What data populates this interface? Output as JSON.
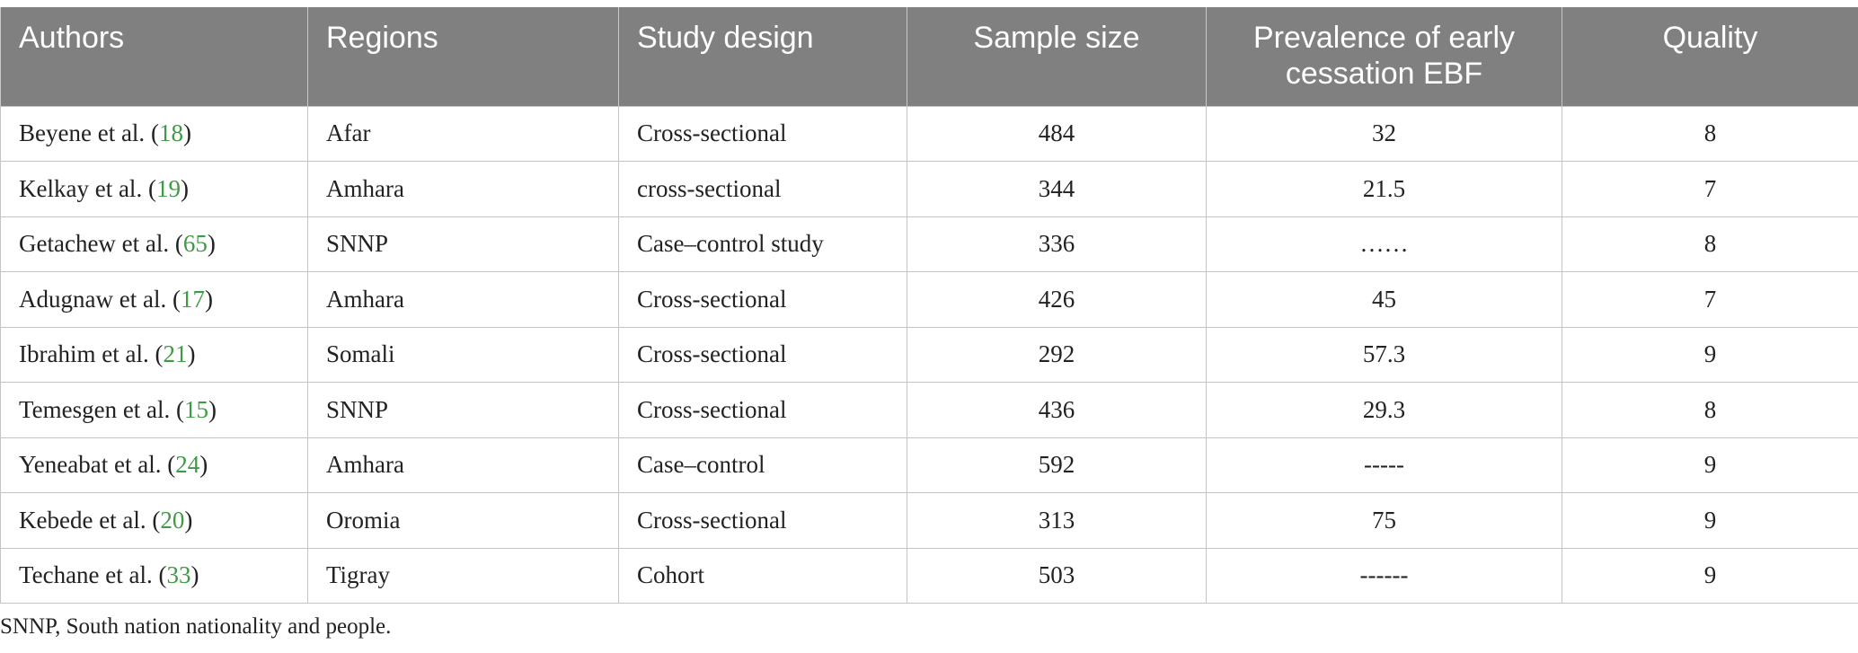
{
  "table": {
    "headers": [
      "Authors",
      "Regions",
      "Study design",
      "Sample size",
      "Prevalence of early cessation EBF",
      "Quality"
    ],
    "rows": [
      {
        "author": "Beyene et al.",
        "ref": "18",
        "region": "Afar",
        "design": "Cross-sectional",
        "sample": "484",
        "prevalence": "32",
        "quality": "8"
      },
      {
        "author": "Kelkay et al.",
        "ref": "19",
        "region": "Amhara",
        "design": "cross-sectional",
        "sample": "344",
        "prevalence": "21.5",
        "quality": "7"
      },
      {
        "author": "Getachew et al.",
        "ref": "65",
        "region": "SNNP",
        "design": "Case–control study",
        "sample": "336",
        "prevalence": "……",
        "quality": "8"
      },
      {
        "author": "Adugnaw et al.",
        "ref": "17",
        "region": "Amhara",
        "design": "Cross-sectional",
        "sample": "426",
        "prevalence": "45",
        "quality": "7"
      },
      {
        "author": "Ibrahim et al.",
        "ref": "21",
        "region": "Somali",
        "design": "Cross-sectional",
        "sample": "292",
        "prevalence": "57.3",
        "quality": "9"
      },
      {
        "author": "Temesgen et al.",
        "ref": "15",
        "region": "SNNP",
        "design": "Cross-sectional",
        "sample": "436",
        "prevalence": "29.3",
        "quality": "8"
      },
      {
        "author": "Yeneabat et al.",
        "ref": "24",
        "region": "Amhara",
        "design": "Case–control",
        "sample": "592",
        "prevalence": "-----",
        "quality": "9"
      },
      {
        "author": "Kebede et al.",
        "ref": "20",
        "region": "Oromia",
        "design": "Cross-sectional",
        "sample": "313",
        "prevalence": "75",
        "quality": "9"
      },
      {
        "author": "Techane et al.",
        "ref": "33",
        "region": "Tigray",
        "design": "Cohort",
        "sample": "503",
        "prevalence": "------",
        "quality": "9"
      }
    ]
  },
  "footnote": "SNNP, South nation nationality and people.",
  "colors": {
    "header_bg": "#7f807f",
    "header_text": "#ffffff",
    "reference_link": "#3f9a45",
    "grid_lines": "#c4c4c4"
  }
}
